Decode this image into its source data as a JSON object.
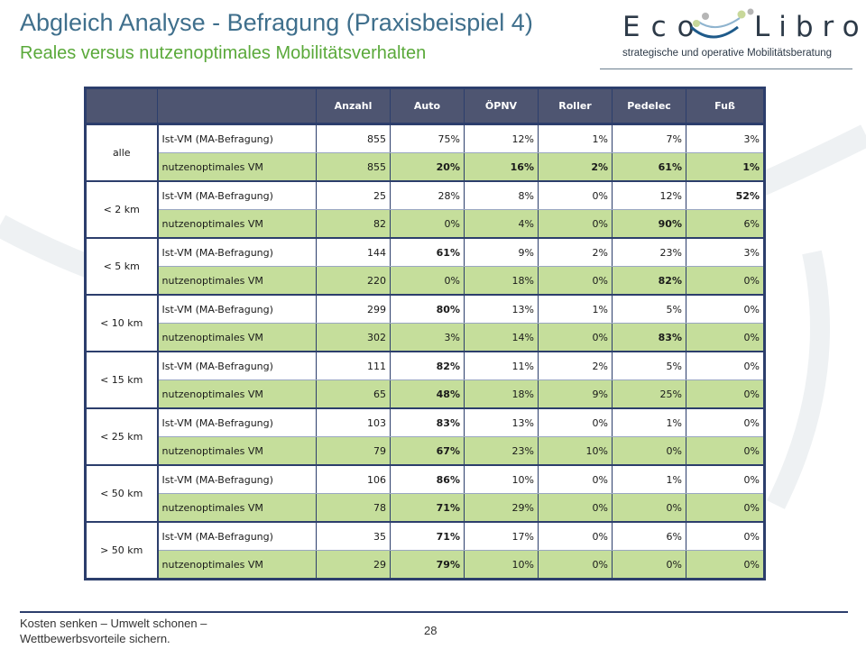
{
  "header": {
    "title": "Abgleich Analyse - Befragung (Praxisbeispiel 4)",
    "subtitle": "Reales versus nutzenoptimales Mobilitätsverhalten"
  },
  "logo": {
    "eco": "Eco",
    "libro": "Libro",
    "tagline": "strategische und operative Mobilitätsberatung"
  },
  "table": {
    "columns": [
      "",
      "",
      "Anzahl",
      "Auto",
      "ÖPNV",
      "Roller",
      "Pedelec",
      "Fuß"
    ],
    "groups": [
      {
        "label": "alle",
        "rows": [
          {
            "label": "Ist-VM (MA-Befragung)",
            "cells": [
              "855",
              "75%",
              "12%",
              "1%",
              "7%",
              "3%"
            ],
            "bold": []
          },
          {
            "label": "nutzenoptimales VM",
            "cells": [
              "855",
              "20%",
              "16%",
              "2%",
              "61%",
              "1%"
            ],
            "bold": [
              1,
              2,
              3,
              4,
              5
            ]
          }
        ]
      },
      {
        "label": "< 2 km",
        "rows": [
          {
            "label": "Ist-VM (MA-Befragung)",
            "cells": [
              "25",
              "28%",
              "8%",
              "0%",
              "12%",
              "52%"
            ],
            "bold": [
              5
            ]
          },
          {
            "label": "nutzenoptimales VM",
            "cells": [
              "82",
              "0%",
              "4%",
              "0%",
              "90%",
              "6%"
            ],
            "bold": [
              4
            ]
          }
        ]
      },
      {
        "label": "< 5 km",
        "rows": [
          {
            "label": "Ist-VM (MA-Befragung)",
            "cells": [
              "144",
              "61%",
              "9%",
              "2%",
              "23%",
              "3%"
            ],
            "bold": [
              1
            ]
          },
          {
            "label": "nutzenoptimales VM",
            "cells": [
              "220",
              "0%",
              "18%",
              "0%",
              "82%",
              "0%"
            ],
            "bold": [
              4
            ]
          }
        ]
      },
      {
        "label": "< 10 km",
        "rows": [
          {
            "label": "Ist-VM (MA-Befragung)",
            "cells": [
              "299",
              "80%",
              "13%",
              "1%",
              "5%",
              "0%"
            ],
            "bold": [
              1
            ]
          },
          {
            "label": "nutzenoptimales VM",
            "cells": [
              "302",
              "3%",
              "14%",
              "0%",
              "83%",
              "0%"
            ],
            "bold": [
              4
            ]
          }
        ]
      },
      {
        "label": "< 15 km",
        "rows": [
          {
            "label": "Ist-VM (MA-Befragung)",
            "cells": [
              "111",
              "82%",
              "11%",
              "2%",
              "5%",
              "0%"
            ],
            "bold": [
              1
            ]
          },
          {
            "label": "nutzenoptimales VM",
            "cells": [
              "65",
              "48%",
              "18%",
              "9%",
              "25%",
              "0%"
            ],
            "bold": [
              1
            ]
          }
        ]
      },
      {
        "label": "< 25 km",
        "rows": [
          {
            "label": "Ist-VM (MA-Befragung)",
            "cells": [
              "103",
              "83%",
              "13%",
              "0%",
              "1%",
              "0%"
            ],
            "bold": [
              1
            ]
          },
          {
            "label": "nutzenoptimales VM",
            "cells": [
              "79",
              "67%",
              "23%",
              "10%",
              "0%",
              "0%"
            ],
            "bold": [
              1
            ]
          }
        ]
      },
      {
        "label": "< 50 km",
        "rows": [
          {
            "label": "Ist-VM (MA-Befragung)",
            "cells": [
              "106",
              "86%",
              "10%",
              "0%",
              "1%",
              "0%"
            ],
            "bold": [
              1
            ]
          },
          {
            "label": "nutzenoptimales VM",
            "cells": [
              "78",
              "71%",
              "29%",
              "0%",
              "0%",
              "0%"
            ],
            "bold": [
              1
            ]
          }
        ]
      },
      {
        "label": "> 50 km",
        "rows": [
          {
            "label": "Ist-VM (MA-Befragung)",
            "cells": [
              "35",
              "71%",
              "17%",
              "0%",
              "6%",
              "0%"
            ],
            "bold": [
              1
            ]
          },
          {
            "label": "nutzenoptimales VM",
            "cells": [
              "29",
              "79%",
              "10%",
              "0%",
              "0%",
              "0%"
            ],
            "bold": [
              1
            ]
          }
        ]
      }
    ]
  },
  "footer": {
    "slogan_line1": "Kosten senken – Umwelt schonen –",
    "slogan_line2": "Wettbewerbsvorteile sichern.",
    "page_number": "28"
  },
  "colors": {
    "title": "#3f6f8c",
    "subtitle": "#5aa93a",
    "table_header": "#4e5571",
    "table_border": "#2c3e6c",
    "optimal_row": "#c5de9b"
  }
}
